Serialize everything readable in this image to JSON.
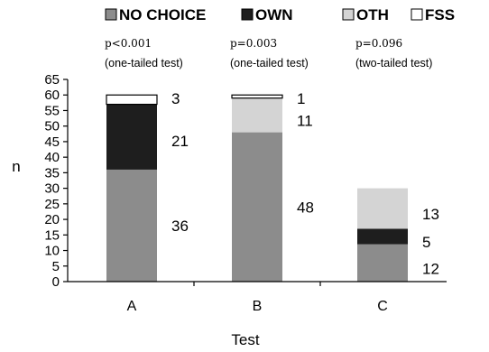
{
  "chart_data": {
    "type": "bar",
    "stacked": true,
    "categories": [
      "A",
      "B",
      "C"
    ],
    "series": [
      {
        "name": "NO CHOICE",
        "values": [
          36,
          48,
          12
        ],
        "color": "#8c8c8c"
      },
      {
        "name": "OWN",
        "values": [
          21,
          0,
          5
        ],
        "color": "#1e1e1e"
      },
      {
        "name": "OTH",
        "values": [
          0,
          11,
          13
        ],
        "color": "#d4d4d4"
      },
      {
        "name": "FSS",
        "values": [
          3,
          1,
          0
        ],
        "color": "#ffffff"
      }
    ],
    "data_labels": [
      [
        {
          "series": "FSS",
          "text": "3"
        },
        {
          "series": "OWN",
          "text": "21"
        },
        {
          "series": "NO CHOICE",
          "text": "36"
        }
      ],
      [
        {
          "series": "FSS",
          "text": "1"
        },
        {
          "series": "OTH",
          "text": "11"
        },
        {
          "series": "NO CHOICE",
          "text": "48"
        }
      ],
      [
        {
          "series": "OTH",
          "text": "13"
        },
        {
          "series": "OWN",
          "text": "5"
        },
        {
          "series": "NO CHOICE",
          "text": "12"
        }
      ]
    ],
    "annotations": [
      {
        "category": "A",
        "p_value": "p<0.001",
        "test": "(one-tailed test)"
      },
      {
        "category": "B",
        "p_value": "p=0.003",
        "test": "(one-tailed test)"
      },
      {
        "category": "C",
        "p_value": "p=0.096",
        "test": "(two-tailed test)"
      }
    ],
    "xlabel": "Test",
    "ylabel": "n",
    "ylim": [
      0,
      65
    ],
    "yticks": [
      0,
      5,
      10,
      15,
      20,
      25,
      30,
      35,
      40,
      45,
      50,
      55,
      60,
      65
    ],
    "legend_position": "top",
    "grid": false
  }
}
